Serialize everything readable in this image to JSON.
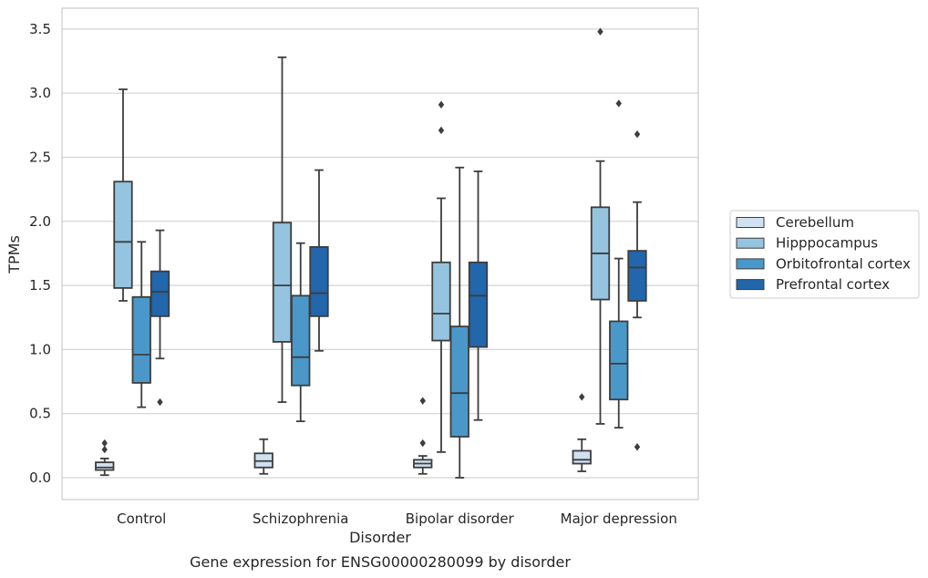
{
  "chart_data": {
    "type": "box",
    "caption": "Gene expression for ENSG00000280099 by disorder",
    "xlabel": "Disorder",
    "ylabel": "TPMs",
    "ylim": [
      -0.17,
      3.65
    ],
    "yticks": [
      "0.0",
      "0.5",
      "1.0",
      "1.5",
      "2.0",
      "2.5",
      "3.0",
      "3.5"
    ],
    "grid": "horizontal",
    "legend_position": "right",
    "categories": [
      "Control",
      "Schizophrenia",
      "Bipolar disorder",
      "Major depression"
    ],
    "series": [
      {
        "name": "Cerebellum",
        "color": "#d0e1f2",
        "boxes": [
          {
            "whislo": 0.02,
            "q1": 0.06,
            "med": 0.08,
            "q3": 0.12,
            "whishi": 0.15,
            "fliers": [
              0.22,
              0.27
            ]
          },
          {
            "whislo": 0.03,
            "q1": 0.08,
            "med": 0.13,
            "q3": 0.19,
            "whishi": 0.3,
            "fliers": []
          },
          {
            "whislo": 0.03,
            "q1": 0.08,
            "med": 0.11,
            "q3": 0.14,
            "whishi": 0.17,
            "fliers": [
              0.27,
              0.6
            ]
          },
          {
            "whislo": 0.05,
            "q1": 0.11,
            "med": 0.14,
            "q3": 0.21,
            "whishi": 0.3,
            "fliers": [
              0.63
            ]
          }
        ]
      },
      {
        "name": "Hipppocampus",
        "color": "#94c4df",
        "boxes": [
          {
            "whislo": 1.38,
            "q1": 1.48,
            "med": 1.84,
            "q3": 2.31,
            "whishi": 3.03,
            "fliers": []
          },
          {
            "whislo": 0.59,
            "q1": 1.06,
            "med": 1.5,
            "q3": 1.99,
            "whishi": 3.28,
            "fliers": []
          },
          {
            "whislo": 0.2,
            "q1": 1.07,
            "med": 1.28,
            "q3": 1.68,
            "whishi": 2.18,
            "fliers": [
              2.71,
              2.91
            ]
          },
          {
            "whislo": 0.42,
            "q1": 1.39,
            "med": 1.75,
            "q3": 2.11,
            "whishi": 2.47,
            "fliers": [
              3.48
            ]
          }
        ]
      },
      {
        "name": "Orbitofrontal cortex",
        "color": "#4a98c9",
        "boxes": [
          {
            "whislo": 0.55,
            "q1": 0.74,
            "med": 0.96,
            "q3": 1.41,
            "whishi": 1.84,
            "fliers": []
          },
          {
            "whislo": 0.44,
            "q1": 0.72,
            "med": 0.94,
            "q3": 1.42,
            "whishi": 1.83,
            "fliers": []
          },
          {
            "whislo": 0.0,
            "q1": 0.32,
            "med": 0.66,
            "q3": 1.18,
            "whishi": 2.42,
            "fliers": []
          },
          {
            "whislo": 0.39,
            "q1": 0.61,
            "med": 0.89,
            "q3": 1.22,
            "whishi": 1.71,
            "fliers": [
              2.92
            ]
          }
        ]
      },
      {
        "name": "Prefrontal cortex",
        "color": "#2266ac",
        "boxes": [
          {
            "whislo": 0.93,
            "q1": 1.26,
            "med": 1.45,
            "q3": 1.61,
            "whishi": 1.93,
            "fliers": [
              0.59
            ]
          },
          {
            "whislo": 0.99,
            "q1": 1.26,
            "med": 1.44,
            "q3": 1.8,
            "whishi": 2.4,
            "fliers": []
          },
          {
            "whislo": 0.45,
            "q1": 1.02,
            "med": 1.42,
            "q3": 1.68,
            "whishi": 2.39,
            "fliers": []
          },
          {
            "whislo": 1.25,
            "q1": 1.38,
            "med": 1.64,
            "q3": 1.77,
            "whishi": 2.15,
            "fliers": [
              0.24,
              2.68
            ]
          }
        ]
      }
    ]
  }
}
